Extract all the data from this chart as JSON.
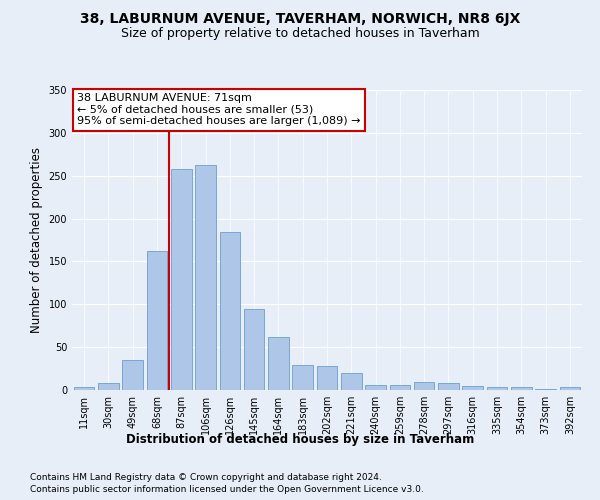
{
  "title1": "38, LABURNUM AVENUE, TAVERHAM, NORWICH, NR8 6JX",
  "title2": "Size of property relative to detached houses in Taverham",
  "xlabel": "Distribution of detached houses by size in Taverham",
  "ylabel": "Number of detached properties",
  "categories": [
    "11sqm",
    "30sqm",
    "49sqm",
    "68sqm",
    "87sqm",
    "106sqm",
    "126sqm",
    "145sqm",
    "164sqm",
    "183sqm",
    "202sqm",
    "221sqm",
    "240sqm",
    "259sqm",
    "278sqm",
    "297sqm",
    "316sqm",
    "335sqm",
    "354sqm",
    "373sqm",
    "392sqm"
  ],
  "values": [
    3,
    8,
    35,
    162,
    258,
    262,
    184,
    95,
    62,
    29,
    28,
    20,
    6,
    6,
    9,
    8,
    5,
    4,
    3,
    1,
    4
  ],
  "bar_color": "#aec6e8",
  "bar_edge_color": "#6a9fd0",
  "vline_x_index": 3,
  "vline_color": "#cc0000",
  "annotation_text": "38 LABURNUM AVENUE: 71sqm\n← 5% of detached houses are smaller (53)\n95% of semi-detached houses are larger (1,089) →",
  "annotation_box_facecolor": "#ffffff",
  "annotation_box_edgecolor": "#cc0000",
  "ylim": [
    0,
    350
  ],
  "yticks": [
    0,
    50,
    100,
    150,
    200,
    250,
    300,
    350
  ],
  "footer1": "Contains HM Land Registry data © Crown copyright and database right 2024.",
  "footer2": "Contains public sector information licensed under the Open Government Licence v3.0.",
  "bg_color": "#e8eef8",
  "plot_bg_color": "#e8eef8",
  "title1_fontsize": 10,
  "title2_fontsize": 9,
  "xlabel_fontsize": 8.5,
  "ylabel_fontsize": 8.5,
  "tick_fontsize": 7,
  "footer_fontsize": 6.5,
  "annotation_fontsize": 8
}
